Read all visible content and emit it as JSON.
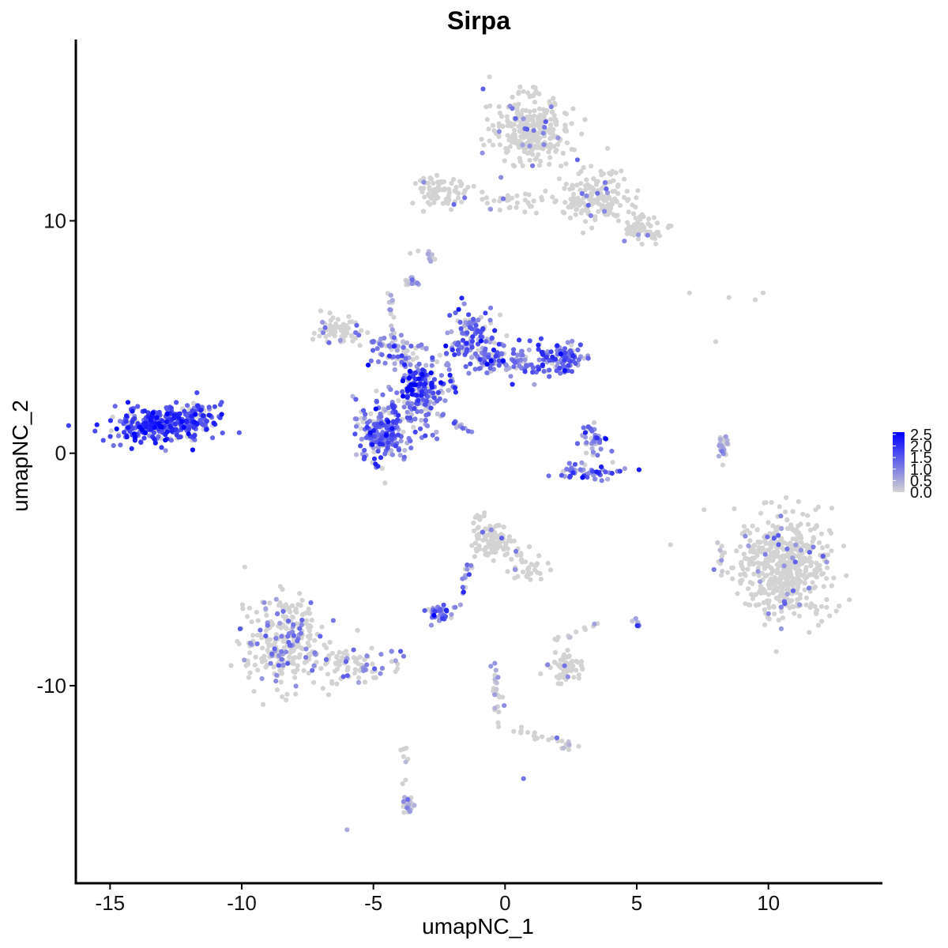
{
  "chart_data": {
    "type": "scatter",
    "title": "Sirpa",
    "xlabel": "umapNC_1",
    "ylabel": "umapNC_2",
    "xlim": [
      -16.3,
      14.3
    ],
    "ylim": [
      -18.5,
      17.8
    ],
    "x_ticks": [
      {
        "value": -15,
        "label": "-15"
      },
      {
        "value": -10,
        "label": "-10"
      },
      {
        "value": -5,
        "label": "-5"
      },
      {
        "value": 0,
        "label": "0"
      },
      {
        "value": 5,
        "label": "5"
      },
      {
        "value": 10,
        "label": "10"
      }
    ],
    "y_ticks": [
      {
        "value": -10,
        "label": "-10"
      },
      {
        "value": 0,
        "label": "0"
      },
      {
        "value": 10,
        "label": "10"
      }
    ],
    "grid": false,
    "legend": {
      "placement": "right",
      "title": "",
      "low_color": "#d3d3d3",
      "high_color": "#0000ff",
      "range": [
        0,
        2.6
      ],
      "labels": [
        {
          "value": 2.5,
          "label": "2.5"
        },
        {
          "value": 2.0,
          "label": "2.0"
        },
        {
          "value": 1.5,
          "label": "1.5"
        },
        {
          "value": 1.0,
          "label": "1.0"
        },
        {
          "value": 0.5,
          "label": "0.5"
        },
        {
          "value": 0.0,
          "label": "0.0"
        }
      ]
    },
    "clusters": [
      {
        "x": -13.0,
        "y": 1.2,
        "sx": 1.3,
        "sy": 0.55,
        "n": 320,
        "expr": 1.7,
        "spread": 0.35
      },
      {
        "x": -11.9,
        "y": 1.6,
        "sx": 0.6,
        "sy": 0.4,
        "n": 60,
        "expr": 1.5,
        "spread": 0.35
      },
      {
        "x": -6.4,
        "y": 5.3,
        "sx": 0.6,
        "sy": 0.35,
        "n": 70,
        "expr": 0.0,
        "spread": 0.12
      },
      {
        "x": -4.6,
        "y": 1.0,
        "sx": 0.75,
        "sy": 0.9,
        "n": 200,
        "expr": 1.2,
        "spread": 0.45
      },
      {
        "x": -3.1,
        "y": 2.9,
        "sx": 0.55,
        "sy": 0.55,
        "n": 90,
        "expr": 1.8,
        "spread": 0.4
      },
      {
        "x": -3.2,
        "y": 2.4,
        "sx": 0.6,
        "sy": 1.1,
        "n": 90,
        "expr": 1.0,
        "spread": 0.5
      },
      {
        "x": -1.2,
        "y": 5.0,
        "sx": 0.7,
        "sy": 0.9,
        "n": 120,
        "expr": 1.3,
        "spread": 0.45
      },
      {
        "x": 0.2,
        "y": 4.0,
        "sx": 1.1,
        "sy": 0.45,
        "n": 110,
        "expr": 1.1,
        "spread": 0.5
      },
      {
        "x": 2.2,
        "y": 4.1,
        "sx": 0.55,
        "sy": 0.5,
        "n": 90,
        "expr": 1.3,
        "spread": 0.45
      },
      {
        "x": -4.0,
        "y": 4.3,
        "sx": 0.9,
        "sy": 0.5,
        "n": 70,
        "expr": 0.9,
        "spread": 0.5
      },
      {
        "x": 3.3,
        "y": 0.6,
        "sx": 0.35,
        "sy": 0.5,
        "n": 40,
        "expr": 1.0,
        "spread": 0.5
      },
      {
        "x": 3.3,
        "y": -0.8,
        "sx": 0.8,
        "sy": 0.2,
        "n": 50,
        "expr": 1.3,
        "spread": 0.45
      },
      {
        "x": 1.0,
        "y": 13.8,
        "sx": 0.9,
        "sy": 1.0,
        "n": 300,
        "expr": 0.0,
        "spread": 0.06
      },
      {
        "x": 3.5,
        "y": 11.0,
        "sx": 0.8,
        "sy": 0.8,
        "n": 160,
        "expr": 0.0,
        "spread": 0.06
      },
      {
        "x": 5.3,
        "y": 9.6,
        "sx": 0.5,
        "sy": 0.4,
        "n": 60,
        "expr": 0.0,
        "spread": 0.06
      },
      {
        "x": -2.4,
        "y": 11.2,
        "sx": 0.7,
        "sy": 0.45,
        "n": 80,
        "expr": 0.0,
        "spread": 0.04
      },
      {
        "x": 0.8,
        "y": 10.9,
        "sx": 1.2,
        "sy": 0.35,
        "n": 40,
        "expr": 0.0,
        "spread": 0.05
      },
      {
        "x": 10.6,
        "y": -4.8,
        "sx": 1.2,
        "sy": 1.5,
        "n": 520,
        "expr": 0.0,
        "spread": 0.05
      },
      {
        "x": -8.4,
        "y": -8.1,
        "sx": 1.0,
        "sy": 1.2,
        "n": 280,
        "expr": 0.0,
        "spread": 0.22
      },
      {
        "x": -5.9,
        "y": -9.1,
        "sx": 1.1,
        "sy": 0.55,
        "n": 90,
        "expr": 0.0,
        "spread": 0.25
      },
      {
        "x": -0.5,
        "y": -3.8,
        "sx": 0.55,
        "sy": 0.5,
        "n": 100,
        "expr": 0.0,
        "spread": 0.06
      },
      {
        "x": 0.9,
        "y": -4.9,
        "sx": 0.6,
        "sy": 0.5,
        "n": 40,
        "expr": 0.0,
        "spread": 0.07
      },
      {
        "x": -2.5,
        "y": -6.9,
        "sx": 0.25,
        "sy": 0.2,
        "n": 40,
        "expr": 1.1,
        "spread": 0.5
      },
      {
        "x": 2.4,
        "y": -9.2,
        "sx": 0.45,
        "sy": 0.4,
        "n": 60,
        "expr": 0.0,
        "spread": 0.06
      },
      {
        "x": -3.7,
        "y": -15.1,
        "sx": 0.2,
        "sy": 0.3,
        "n": 25,
        "expr": 0.2,
        "spread": 0.4
      },
      {
        "x": -3.6,
        "y": 7.3,
        "sx": 0.15,
        "sy": 0.15,
        "n": 15,
        "expr": 0.4,
        "spread": 0.4
      },
      {
        "x": -2.8,
        "y": 8.5,
        "sx": 0.12,
        "sy": 0.15,
        "n": 10,
        "expr": 0.4,
        "spread": 0.4
      },
      {
        "x": 8.3,
        "y": 0.2,
        "sx": 0.15,
        "sy": 0.5,
        "n": 15,
        "expr": 0.2,
        "spread": 0.4
      },
      {
        "x": 5.0,
        "y": -7.3,
        "sx": 0.1,
        "sy": 0.12,
        "n": 8,
        "expr": 1.0,
        "spread": 0.4
      },
      {
        "x": 2.4,
        "y": -12.6,
        "sx": 0.2,
        "sy": 0.12,
        "n": 8,
        "expr": 0.2,
        "spread": 0.3
      },
      {
        "x": 8.2,
        "y": -4.5,
        "sx": 0.2,
        "sy": 0.5,
        "n": 12,
        "expr": 0.1,
        "spread": 0.3
      }
    ],
    "streaks": [
      {
        "from": [
          -4.2,
          4.2
        ],
        "to": [
          -4.4,
          7.1
        ],
        "n": 18,
        "expr": 0.4,
        "spread": 0.5
      },
      {
        "from": [
          -3.2,
          2.1
        ],
        "to": [
          -1.2,
          0.8
        ],
        "n": 22,
        "expr": 0.6,
        "spread": 0.5
      },
      {
        "from": [
          -2.0,
          2.6
        ],
        "to": [
          -2.2,
          3.8
        ],
        "n": 10,
        "expr": 0.8,
        "spread": 0.5
      },
      {
        "from": [
          -1.3,
          -3.0
        ],
        "to": [
          -0.7,
          -2.6
        ],
        "n": 10,
        "expr": 0.0,
        "spread": 0.1
      },
      {
        "from": [
          -1.3,
          -4.8
        ],
        "to": [
          -1.9,
          -6.8
        ],
        "n": 16,
        "expr": 1.0,
        "spread": 0.5
      },
      {
        "from": [
          -0.4,
          -9.0
        ],
        "to": [
          -0.2,
          -12.0
        ],
        "n": 24,
        "expr": 0.2,
        "spread": 0.3
      },
      {
        "from": [
          0.4,
          -11.9
        ],
        "to": [
          2.4,
          -12.6
        ],
        "n": 18,
        "expr": 0.0,
        "spread": 0.1
      },
      {
        "from": [
          -3.9,
          -12.1
        ],
        "to": [
          -3.8,
          -14.3
        ],
        "n": 8,
        "expr": 0.1,
        "spread": 0.2
      },
      {
        "from": [
          1.7,
          -8.2
        ],
        "to": [
          3.5,
          -7.3
        ],
        "n": 12,
        "expr": 0.1,
        "spread": 0.2
      },
      {
        "from": [
          8.4,
          0.9
        ],
        "to": [
          8.2,
          -0.3
        ],
        "n": 10,
        "expr": 0.3,
        "spread": 0.4
      },
      {
        "from": [
          -5.1,
          4.8
        ],
        "to": [
          -4.2,
          4.6
        ],
        "n": 14,
        "expr": 0.7,
        "spread": 0.5
      }
    ],
    "points": [
      {
        "x": 7.0,
        "y": 6.9,
        "v": 0.0
      },
      {
        "x": 8.5,
        "y": 6.7,
        "v": 0.0
      },
      {
        "x": 9.5,
        "y": 6.6,
        "v": 0.0
      },
      {
        "x": 9.8,
        "y": 6.9,
        "v": 0.0
      },
      {
        "x": 8.0,
        "y": 4.8,
        "v": 0.0
      },
      {
        "x": -6.0,
        "y": -16.2,
        "v": 0.5
      },
      {
        "x": 0.7,
        "y": -14.0,
        "v": 1.2
      },
      {
        "x": -3.6,
        "y": 8.6,
        "v": 0.0
      },
      {
        "x": -3.3,
        "y": 8.7,
        "v": 0.0
      },
      {
        "x": -2.8,
        "y": -7.4,
        "v": 0.8
      }
    ]
  }
}
